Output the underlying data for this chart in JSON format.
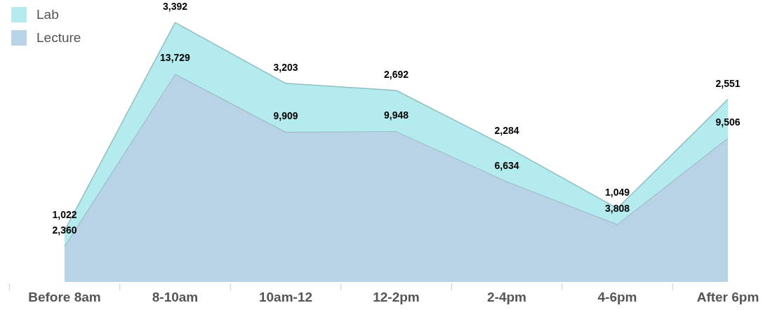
{
  "chart_data": {
    "type": "area",
    "stacked": true,
    "legend": "top left",
    "categories": [
      "Before 8am",
      "8-10am",
      "10am-12",
      "12-2pm",
      "2-4pm",
      "4-6pm",
      "After 6pm"
    ],
    "series": [
      {
        "name": "Lecture",
        "color": "#b9d3e6",
        "values": [
          2360,
          13729,
          9909,
          9948,
          6634,
          3808,
          9506
        ],
        "value_labels": [
          "2,360",
          "13,729",
          "9,909",
          "9,948",
          "6,634",
          "3,808",
          "9,506"
        ]
      },
      {
        "name": "Lab",
        "color": "#b3ebef",
        "values": [
          1022,
          3392,
          3203,
          2692,
          2284,
          1049,
          2551
        ],
        "value_labels": [
          "1,022",
          "3,392",
          "3,203",
          "2,692",
          "2,284",
          "1,049",
          "2,551"
        ]
      }
    ]
  }
}
